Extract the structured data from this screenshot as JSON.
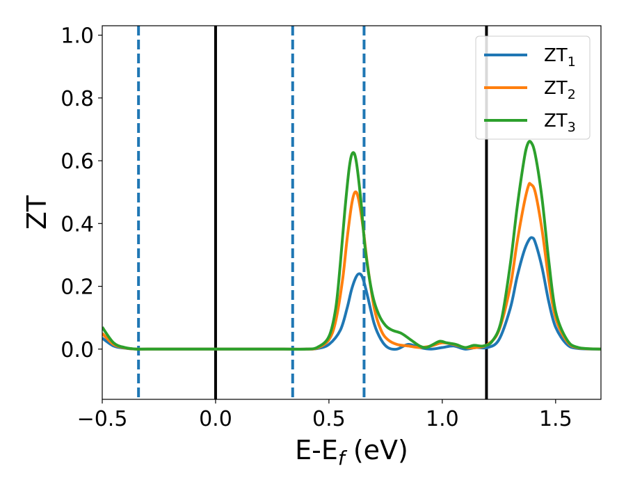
{
  "chart_data": {
    "type": "line",
    "xlabel": {
      "main": "E-E",
      "sub": "f",
      "suffix": " (eV)"
    },
    "ylabel": "ZT",
    "xlim": [
      -0.5,
      1.7
    ],
    "ylim": [
      -0.16,
      1.03
    ],
    "xticks": [
      -0.5,
      0.0,
      0.5,
      1.0,
      1.5
    ],
    "xtick_labels": [
      "−0.5",
      "0.0",
      "0.5",
      "1.0",
      "1.5"
    ],
    "yticks": [
      0.0,
      0.2,
      0.4,
      0.6,
      0.8,
      1.0
    ],
    "ytick_labels": [
      "0.0",
      "0.2",
      "0.4",
      "0.6",
      "0.8",
      "1.0"
    ],
    "legend_position": "top-right",
    "vertical_lines": [
      {
        "x": -0.34,
        "style": "dashed",
        "color": "#1f77b4"
      },
      {
        "x": 0.0,
        "style": "solid",
        "color": "#000000"
      },
      {
        "x": 0.34,
        "style": "dashed",
        "color": "#1f77b4"
      },
      {
        "x": 0.655,
        "style": "dashed",
        "color": "#1f77b4"
      },
      {
        "x": 1.195,
        "style": "solid",
        "color": "#000000"
      }
    ],
    "series": [
      {
        "name": "ZT",
        "name_sub": "1",
        "color": "#1f77b4",
        "x": [
          -0.5,
          -0.45,
          -0.4,
          -0.35,
          -0.3,
          0.0,
          0.3,
          0.4,
          0.45,
          0.5,
          0.55,
          0.58,
          0.6,
          0.62,
          0.635,
          0.65,
          0.67,
          0.7,
          0.73,
          0.76,
          0.8,
          0.85,
          0.9,
          0.95,
          1.0,
          1.05,
          1.1,
          1.15,
          1.2,
          1.25,
          1.3,
          1.33,
          1.36,
          1.38,
          1.395,
          1.41,
          1.44,
          1.47,
          1.5,
          1.55,
          1.6,
          1.7
        ],
        "y": [
          0.035,
          0.01,
          0.003,
          0.0,
          0.0,
          0.0,
          0.0,
          0.0,
          0.002,
          0.015,
          0.06,
          0.13,
          0.19,
          0.23,
          0.24,
          0.225,
          0.17,
          0.08,
          0.03,
          0.005,
          0.0,
          0.015,
          0.005,
          0.0,
          0.005,
          0.01,
          0.0,
          0.005,
          0.005,
          0.03,
          0.13,
          0.23,
          0.31,
          0.345,
          0.355,
          0.34,
          0.26,
          0.15,
          0.07,
          0.015,
          0.002,
          0.0
        ]
      },
      {
        "name": "ZT",
        "name_sub": "2",
        "color": "#ff7f0e",
        "x": [
          -0.5,
          -0.45,
          -0.4,
          -0.35,
          -0.3,
          0.0,
          0.3,
          0.4,
          0.45,
          0.5,
          0.53,
          0.56,
          0.58,
          0.6,
          0.615,
          0.63,
          0.65,
          0.67,
          0.7,
          0.73,
          0.76,
          0.8,
          0.85,
          0.9,
          0.95,
          1.0,
          1.05,
          1.1,
          1.15,
          1.2,
          1.25,
          1.3,
          1.33,
          1.36,
          1.38,
          1.39,
          1.41,
          1.44,
          1.47,
          1.5,
          1.55,
          1.6,
          1.7
        ],
        "y": [
          0.05,
          0.015,
          0.004,
          0.0,
          0.0,
          0.0,
          0.0,
          0.0,
          0.004,
          0.03,
          0.09,
          0.22,
          0.35,
          0.46,
          0.5,
          0.48,
          0.39,
          0.27,
          0.13,
          0.06,
          0.03,
          0.015,
          0.01,
          0.005,
          0.01,
          0.02,
          0.015,
          0.005,
          0.005,
          0.015,
          0.06,
          0.2,
          0.34,
          0.46,
          0.52,
          0.525,
          0.5,
          0.38,
          0.22,
          0.1,
          0.025,
          0.004,
          0.0
        ]
      },
      {
        "name": "ZT",
        "name_sub": "3",
        "color": "#2ca02c",
        "x": [
          -0.5,
          -0.45,
          -0.4,
          -0.35,
          -0.3,
          0.0,
          0.3,
          0.4,
          0.45,
          0.5,
          0.53,
          0.55,
          0.57,
          0.59,
          0.605,
          0.62,
          0.64,
          0.66,
          0.69,
          0.72,
          0.75,
          0.78,
          0.82,
          0.86,
          0.9,
          0.93,
          0.96,
          0.99,
          1.02,
          1.06,
          1.1,
          1.14,
          1.18,
          1.22,
          1.26,
          1.3,
          1.33,
          1.36,
          1.375,
          1.39,
          1.41,
          1.44,
          1.47,
          1.5,
          1.55,
          1.6,
          1.7
        ],
        "y": [
          0.07,
          0.02,
          0.005,
          0.0,
          0.0,
          0.0,
          0.0,
          0.0,
          0.006,
          0.04,
          0.13,
          0.27,
          0.44,
          0.58,
          0.625,
          0.6,
          0.48,
          0.32,
          0.18,
          0.11,
          0.075,
          0.06,
          0.05,
          0.03,
          0.01,
          0.005,
          0.015,
          0.025,
          0.02,
          0.015,
          0.005,
          0.012,
          0.01,
          0.025,
          0.09,
          0.27,
          0.45,
          0.6,
          0.65,
          0.66,
          0.62,
          0.48,
          0.28,
          0.12,
          0.03,
          0.005,
          0.0
        ]
      }
    ]
  }
}
